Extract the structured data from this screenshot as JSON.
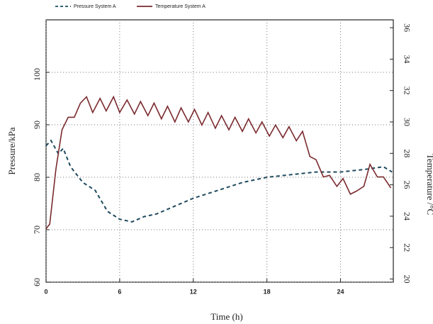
{
  "chart_data": {
    "type": "line",
    "x_label": "Time (h)",
    "y_label": "Pressure/kPa",
    "y2_label": "Temperature /°C",
    "xlim": [
      0,
      28.3
    ],
    "xticks": [
      0,
      6,
      12,
      18,
      24
    ],
    "ylim": [
      60,
      110
    ],
    "yticks": [
      60,
      70,
      80,
      90,
      100
    ],
    "y2lim": [
      19.8,
      36.5
    ],
    "y2ticks": [
      20,
      22,
      24,
      26,
      28,
      30,
      32,
      34,
      36
    ],
    "grid": true,
    "series": [
      {
        "name": "Pressure System A",
        "color": "#1f4a5e",
        "dash": true,
        "axis": "y",
        "x": [
          0,
          0.4,
          1,
          1.4,
          2,
          3,
          4,
          5,
          6,
          7,
          8,
          9,
          10,
          12,
          14,
          16,
          18,
          20,
          22,
          24,
          26,
          27.5,
          28.2
        ],
        "values": [
          86,
          87,
          84.5,
          85.5,
          82,
          79,
          77.5,
          73.5,
          72,
          71.5,
          72.5,
          73,
          74,
          76,
          77.5,
          79,
          80,
          80.5,
          81,
          81,
          81.5,
          82,
          81
        ]
      },
      {
        "name": "Temperature System A",
        "color": "#7a2a2e",
        "dash": false,
        "axis": "y2",
        "x": [
          0,
          0.3,
          0.8,
          1.3,
          1.8,
          2.3,
          2.8,
          3.3,
          3.8,
          4.4,
          4.9,
          5.5,
          6,
          6.6,
          7.2,
          7.7,
          8.3,
          8.8,
          9.4,
          9.9,
          10.5,
          11,
          11.6,
          12.1,
          12.7,
          13.2,
          13.8,
          14.3,
          14.9,
          15.4,
          16,
          16.5,
          17.1,
          17.6,
          18.2,
          18.7,
          19.3,
          19.8,
          20.4,
          20.9,
          21.5,
          22,
          22.6,
          23.1,
          23.7,
          24.2,
          24.8,
          25.3,
          25.9,
          26.4,
          27,
          27.5,
          28.1
        ],
        "values": [
          23.2,
          23.5,
          27,
          29.5,
          30.3,
          30.3,
          31.2,
          31.6,
          30.6,
          31.5,
          30.7,
          31.6,
          30.6,
          31.4,
          30.5,
          31.3,
          30.4,
          31.2,
          30.2,
          31,
          30,
          30.9,
          30,
          30.8,
          29.8,
          30.6,
          29.6,
          30.4,
          29.5,
          30.3,
          29.4,
          30.2,
          29.3,
          30,
          29.1,
          29.8,
          29,
          29.7,
          28.8,
          29.4,
          27.8,
          27.6,
          26.5,
          26.6,
          25.9,
          26.4,
          25.4,
          25.6,
          25.9,
          27.3,
          26.5,
          26.5,
          25.8
        ]
      }
    ]
  }
}
